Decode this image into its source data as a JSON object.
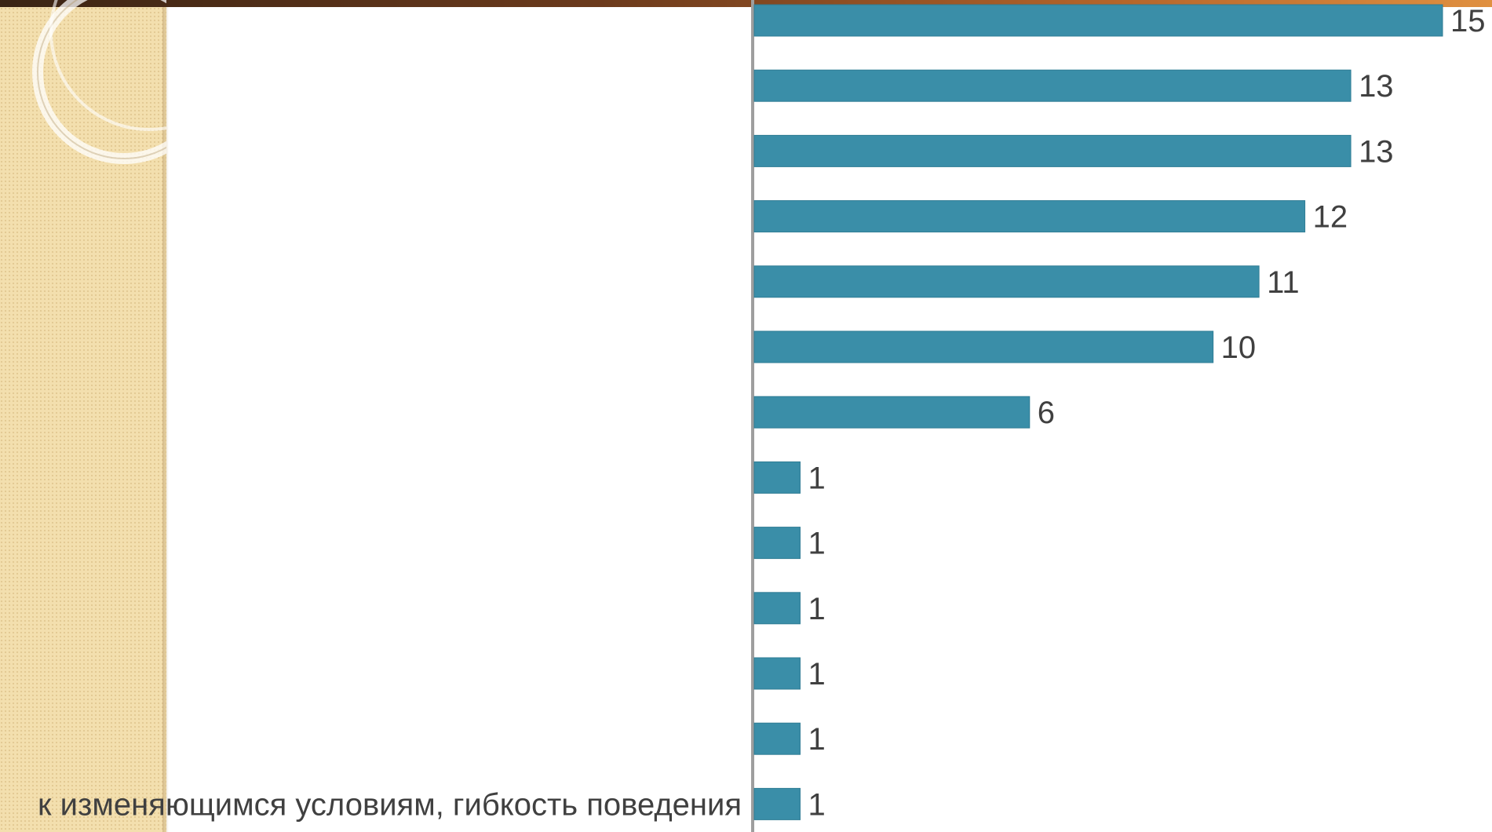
{
  "colors": {
    "bar": "#3a8ea8",
    "axis": "#9e9e9e",
    "label": "#404040",
    "panel": "#f3dfae"
  },
  "chart_data": {
    "type": "bar",
    "orientation": "horizontal",
    "categories": [
      "",
      "",
      "",
      "",
      "",
      "",
      "",
      "",
      "",
      "",
      "",
      "",
      "к изменяющимся условиям, гибкость поведения"
    ],
    "values": [
      15,
      13,
      13,
      12,
      11,
      10,
      6,
      1,
      1,
      1,
      1,
      1,
      1
    ],
    "value_labels": [
      "15",
      "13",
      "13",
      "12",
      "11",
      "10",
      "6",
      "1",
      "1",
      "1",
      "1",
      "1",
      "1"
    ],
    "xlim": [
      0,
      15
    ],
    "grid": false,
    "legend": "none"
  }
}
